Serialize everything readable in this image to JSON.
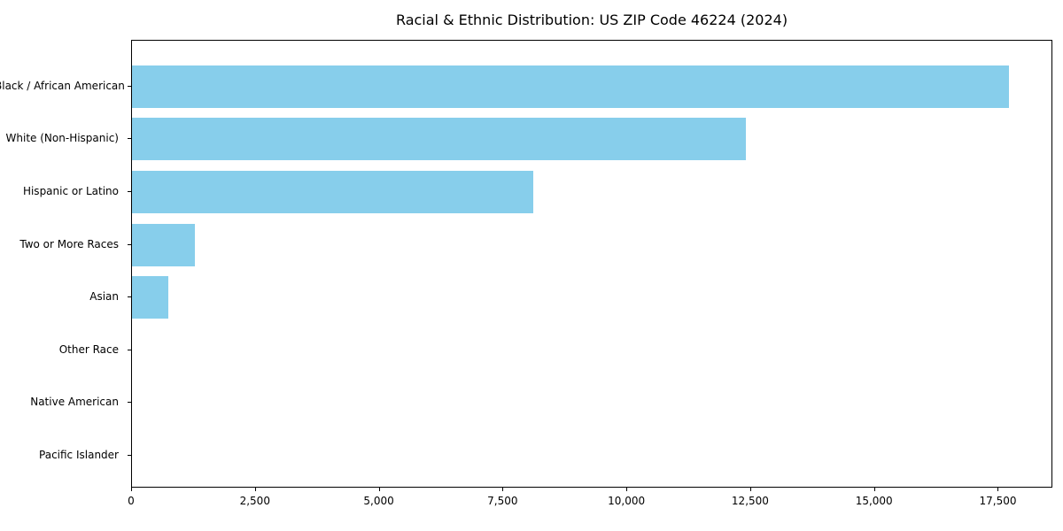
{
  "chart_data": {
    "type": "bar",
    "orientation": "horizontal",
    "title": "Racial & Ethnic Distribution: US ZIP Code 46224 (2024)",
    "categories": [
      "Black / African American",
      "White (Non-Hispanic)",
      "Hispanic or Latino",
      "Two or More Races",
      "Asian",
      "Other Race",
      "Native American",
      "Pacific Islander"
    ],
    "values": [
      17700,
      12400,
      8100,
      1270,
      730,
      0,
      0,
      0
    ],
    "xlabel": "",
    "ylabel": "",
    "xlim": [
      0,
      18600
    ],
    "x_ticks": [
      {
        "value": 0,
        "label": "0"
      },
      {
        "value": 2500,
        "label": "2,500"
      },
      {
        "value": 5000,
        "label": "5,000"
      },
      {
        "value": 7500,
        "label": "7,500"
      },
      {
        "value": 10000,
        "label": "10,000"
      },
      {
        "value": 12500,
        "label": "12,500"
      },
      {
        "value": 15000,
        "label": "15,000"
      },
      {
        "value": 17500,
        "label": "17,500"
      }
    ],
    "grid": false,
    "legend": "none",
    "data_labels": "none",
    "bar_color": "#87CEEB",
    "axis_color": "#000000",
    "text_color": "#000000",
    "background_color": "#FFFFFF"
  }
}
